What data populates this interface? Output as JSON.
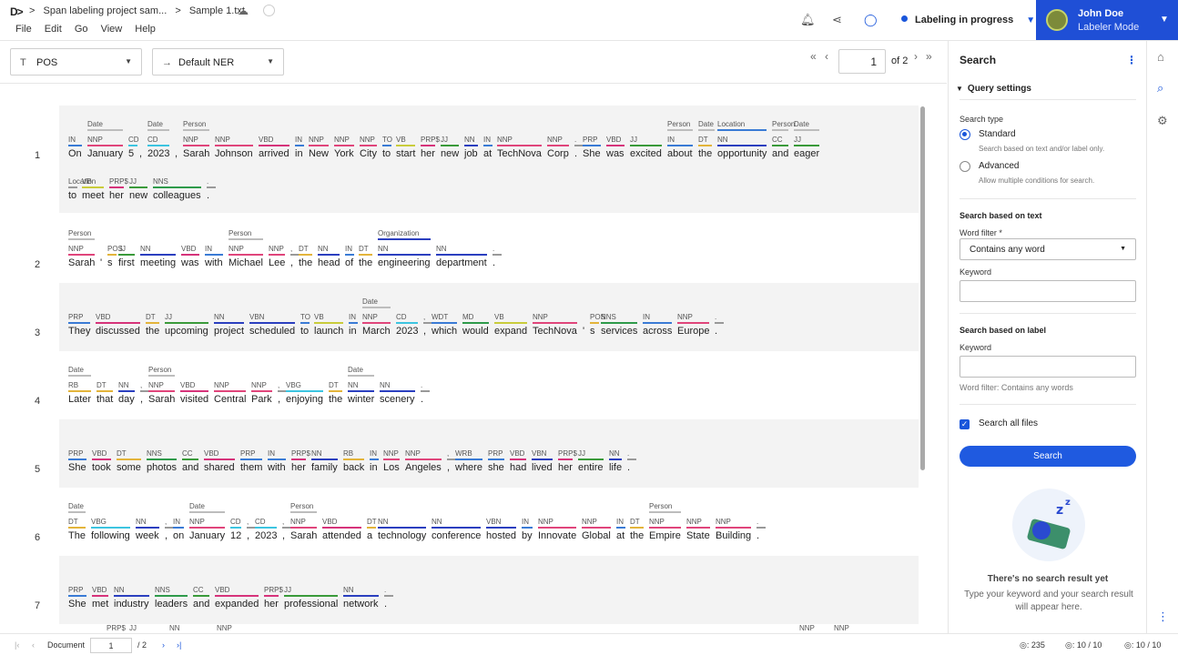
{
  "header": {
    "breadcrumbs": [
      ">",
      "Span labeling project sam...",
      ">",
      "Sample 1.txt"
    ],
    "menu": [
      "File",
      "Edit",
      "Go",
      "View",
      "Help"
    ],
    "status": "Labeling in progress",
    "user_name": "John Doe",
    "user_mode": "Labeler Mode"
  },
  "toolbar": {
    "pos_select": "POS",
    "pos_icon": "T",
    "ner_select": "Default NER",
    "ner_icon": "→",
    "page": "1",
    "page_of": "of 2"
  },
  "lines": [
    {
      "num": "1",
      "rows": [
        {
          "tokens": [
            "On",
            "January",
            "5",
            ",",
            "2023",
            ",",
            "Sarah",
            "Johnson",
            "arrived",
            "in",
            "New",
            "York",
            "City",
            "to",
            "start",
            "her",
            "new",
            "job",
            "at",
            "TechNova",
            "Corp",
            ".",
            "She",
            "was",
            "excited",
            "about",
            "the",
            "opportunity",
            "and",
            "eager"
          ],
          "pos": [
            "IN",
            "NNP",
            "CD",
            "",
            "CD",
            "",
            "NNP",
            "NNP",
            "VBD",
            "IN",
            "NNP",
            "NNP",
            "NNP",
            "TO",
            "VB",
            "PRP$",
            "JJ",
            "NN",
            "IN",
            "NNP",
            "NNP",
            ".",
            "PRP",
            "VBD",
            "JJ",
            "IN",
            "DT",
            "NN",
            "CC",
            "JJ"
          ],
          "ner": [
            "",
            "Date",
            "",
            "",
            "Date",
            "",
            "Person",
            "",
            "",
            "",
            "",
            "",
            "",
            "",
            "",
            "",
            "",
            "",
            "",
            "",
            "",
            "",
            "",
            "",
            "",
            "Person",
            "Date",
            "Location",
            "Person",
            "Date"
          ]
        },
        {
          "tokens": [
            "to",
            "meet",
            "her",
            "new",
            "colleagues",
            "."
          ],
          "pos": [
            "Location",
            "VB",
            "PRP$",
            "JJ",
            "NNS",
            "."
          ],
          "ner": [
            "",
            "",
            "",
            "",
            "",
            ""
          ]
        }
      ]
    },
    {
      "num": "2",
      "rows": [
        {
          "tokens": [
            "Sarah",
            "'",
            "s",
            "first",
            "meeting",
            "was",
            "with",
            "Michael",
            "Lee",
            ",",
            "the",
            "head",
            "of",
            "the",
            "engineering",
            "department",
            "."
          ],
          "pos": [
            "NNP",
            "",
            "POS",
            "JJ",
            "NN",
            "VBD",
            "IN",
            "NNP",
            "NNP",
            ",",
            "DT",
            "NN",
            "IN",
            "DT",
            "NN",
            "NN",
            "."
          ],
          "ner": [
            "Person",
            "",
            "",
            "",
            "",
            "",
            "",
            "Person",
            "",
            "",
            "",
            "",
            "",
            "",
            "Organization",
            "",
            ""
          ]
        }
      ]
    },
    {
      "num": "3",
      "rows": [
        {
          "tokens": [
            "They",
            "discussed",
            "the",
            "upcoming",
            "project",
            "scheduled",
            "to",
            "launch",
            "in",
            "March",
            "2023",
            ",",
            "which",
            "would",
            "expand",
            "TechNova",
            "'",
            "s",
            "services",
            "across",
            "Europe",
            "."
          ],
          "pos": [
            "PRP",
            "VBD",
            "DT",
            "JJ",
            "NN",
            "VBN",
            "TO",
            "VB",
            "IN",
            "NNP",
            "CD",
            ",",
            "WDT",
            "MD",
            "VB",
            "NNP",
            "",
            "POS",
            "NNS",
            "IN",
            "NNP",
            "."
          ],
          "ner": [
            "",
            "",
            "",
            "",
            "",
            "",
            "",
            "",
            "",
            "Date",
            "",
            "",
            "",
            "",
            "",
            "",
            "",
            "",
            "",
            "",
            "",
            ""
          ]
        }
      ]
    },
    {
      "num": "4",
      "rows": [
        {
          "tokens": [
            "Later",
            "that",
            "day",
            ",",
            "Sarah",
            "visited",
            "Central",
            "Park",
            ",",
            "enjoying",
            "the",
            "winter",
            "scenery",
            "."
          ],
          "pos": [
            "RB",
            "DT",
            "NN",
            ",",
            "NNP",
            "VBD",
            "NNP",
            "NNP",
            ",",
            "VBG",
            "DT",
            "NN",
            "NN",
            "."
          ],
          "ner": [
            "Date",
            "",
            "",
            "",
            "Person",
            "",
            "",
            "",
            "",
            "",
            "",
            "Date",
            "",
            ""
          ]
        }
      ]
    },
    {
      "num": "5",
      "rows": [
        {
          "tokens": [
            "She",
            "took",
            "some",
            "photos",
            "and",
            "shared",
            "them",
            "with",
            "her",
            "family",
            "back",
            "in",
            "Los",
            "Angeles",
            ",",
            "where",
            "she",
            "had",
            "lived",
            "her",
            "entire",
            "life",
            "."
          ],
          "pos": [
            "PRP",
            "VBD",
            "DT",
            "NNS",
            "CC",
            "VBD",
            "PRP",
            "IN",
            "PRP$",
            "NN",
            "RB",
            "IN",
            "NNP",
            "NNP",
            ",",
            "WRB",
            "PRP",
            "VBD",
            "VBN",
            "PRP$",
            "JJ",
            "NN",
            "."
          ],
          "ner": [
            "",
            "",
            "",
            "",
            "",
            "",
            "",
            "",
            "",
            "",
            "",
            "",
            "",
            "",
            "",
            "",
            "",
            "",
            "",
            "",
            "",
            "",
            ""
          ]
        }
      ]
    },
    {
      "num": "6",
      "rows": [
        {
          "tokens": [
            "The",
            "following",
            "week",
            ",",
            "on",
            "January",
            "12",
            ",",
            "2023",
            ",",
            "Sarah",
            "attended",
            "a",
            "technology",
            "conference",
            "hosted",
            "by",
            "Innovate",
            "Global",
            "at",
            "the",
            "Empire",
            "State",
            "Building",
            "."
          ],
          "pos": [
            "DT",
            "VBG",
            "NN",
            ",",
            "IN",
            "NNP",
            "CD",
            ",",
            "CD",
            ",",
            "NNP",
            "VBD",
            "DT",
            "NN",
            "NN",
            "VBN",
            "IN",
            "NNP",
            "NNP",
            "IN",
            "DT",
            "NNP",
            "NNP",
            "NNP",
            "."
          ],
          "ner": [
            "Date",
            "",
            "",
            "",
            "",
            "Date",
            "",
            "",
            "",
            "",
            "Person",
            "",
            "",
            "",
            "",
            "",
            "",
            "",
            "",
            "",
            "",
            "Person",
            "",
            "",
            " "
          ]
        }
      ]
    },
    {
      "num": "7",
      "rows": [
        {
          "tokens": [
            "She",
            "met",
            "industry",
            "leaders",
            "and",
            "expanded",
            "her",
            "professional",
            "network",
            "."
          ],
          "pos": [
            "PRP",
            "VBD",
            "NN",
            "NNS",
            "CC",
            "VBD",
            "PRP$",
            "JJ",
            "NN",
            "."
          ],
          "ner": [
            "",
            "",
            "",
            "",
            "",
            "",
            "",
            "",
            "",
            ""
          ]
        }
      ]
    }
  ],
  "partial_line_labels": [
    "PRP$",
    "JJ",
    "NN",
    "NNP",
    "NNP",
    "NNP"
  ],
  "search": {
    "title": "Search",
    "query_settings": "Query settings",
    "search_type": "Search type",
    "standard": "Standard",
    "standard_desc": "Search based on text and/or label only.",
    "advanced": "Advanced",
    "advanced_desc": "Allow multiple conditions for search.",
    "text_header": "Search based on text",
    "word_filter_label": "Word filter *",
    "word_filter_value": "Contains any word",
    "keyword_label": "Keyword",
    "label_header": "Search based on label",
    "keyword_label_2": "Keyword",
    "word_filter_note": "Word filter: Contains any words",
    "search_all": "Search all files",
    "button": "Search",
    "empty_title": "There's no search result yet",
    "empty_desc": "Type your keyword and your search result will appear here."
  },
  "footer": {
    "document_label": "Document",
    "doc_page": "1",
    "doc_total": "/ 2",
    "count1": ": 235",
    "count2": ": 10 / 10",
    "count3": ": 10 / 10"
  },
  "colors": {
    "accent": "#1f5ae0",
    "pos": {
      "NNP": "#e0457b",
      "NN": "#2b3fbf",
      "NNS": "#2e9a4a",
      "VBD": "#d6337a",
      "VB": "#c9cc3b",
      "VBN": "#2b3fbf",
      "VBG": "#3cc4e0",
      "JJ": "#3a9a3a",
      "IN": "#3a7bd5",
      "DT": "#e3b43a",
      "CD": "#3cc4e0",
      "PRP": "#3a7bd5",
      "PRP$": "#d6337a",
      "CC": "#3a9a3a",
      "TO": "#3a7bd5",
      "POS": "#e3b43a",
      "RB": "#e3b43a",
      "WRB": "#3a7bd5",
      "WDT": "#3a7bd5",
      "MD": "#2e9a4a",
      "default": "#999999"
    },
    "ner": {
      "Date": "#bdbdbd",
      "Person": "#bdbdbd",
      "Location": "#3a7bd5",
      "Organization": "#2b3fbf"
    }
  }
}
